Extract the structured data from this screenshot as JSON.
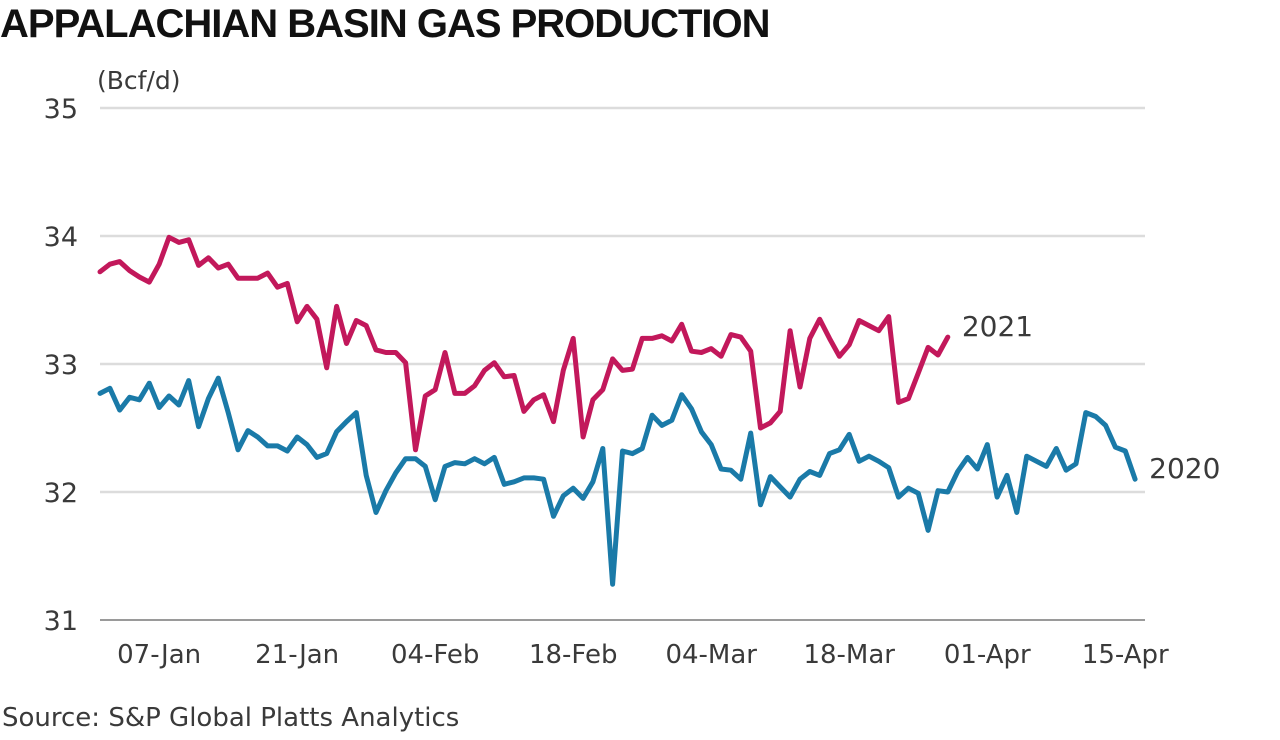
{
  "title": "APPALACHIAN BASIN GAS PRODUCTION",
  "source": "Source: S&P Global Platts Analytics",
  "chart_data": {
    "type": "line",
    "ylabel": "(Bcf/d)",
    "ylim": [
      31,
      35
    ],
    "yticks": [
      "31",
      "32",
      "33",
      "34",
      "35"
    ],
    "grid": true,
    "x_domain": [
      "01-Jan",
      "17-Apr"
    ],
    "xticks": [
      {
        "label": "07-Jan",
        "day": 7
      },
      {
        "label": "21-Jan",
        "day": 21
      },
      {
        "label": "04-Feb",
        "day": 35
      },
      {
        "label": "18-Feb",
        "day": 49
      },
      {
        "label": "04-Mar",
        "day": 63
      },
      {
        "label": "18-Mar",
        "day": 77
      },
      {
        "label": "01-Apr",
        "day": 91
      },
      {
        "label": "15-Apr",
        "day": 105
      }
    ],
    "series": [
      {
        "name": "2021",
        "color": "#c2185b",
        "values": [
          33.72,
          33.78,
          33.8,
          33.73,
          33.68,
          33.64,
          33.78,
          33.99,
          33.95,
          33.97,
          33.77,
          33.83,
          33.75,
          33.78,
          33.67,
          33.67,
          33.67,
          33.71,
          33.6,
          33.63,
          33.33,
          33.45,
          33.35,
          32.97,
          33.45,
          33.16,
          33.34,
          33.3,
          33.11,
          33.09,
          33.09,
          33.01,
          32.33,
          32.75,
          32.8,
          33.09,
          32.77,
          32.77,
          32.83,
          32.95,
          33.01,
          32.9,
          32.91,
          32.63,
          32.72,
          32.76,
          32.55,
          32.95,
          33.2,
          32.43,
          32.72,
          32.8,
          33.04,
          32.95,
          32.96,
          33.2,
          33.2,
          33.22,
          33.18,
          33.31,
          33.1,
          33.09,
          33.12,
          33.06,
          33.23,
          33.21,
          33.1,
          32.5,
          32.54,
          32.63,
          33.26,
          32.82,
          33.2,
          33.35,
          33.2,
          33.06,
          33.15,
          33.34,
          33.3,
          33.26,
          33.37,
          32.7,
          32.73,
          32.93,
          33.13,
          33.07,
          33.21
        ]
      },
      {
        "name": "2020",
        "color": "#1a7aa8",
        "values": [
          32.77,
          32.81,
          32.64,
          32.74,
          32.72,
          32.85,
          32.66,
          32.75,
          32.68,
          32.87,
          32.51,
          32.73,
          32.89,
          32.62,
          32.33,
          32.48,
          32.43,
          32.36,
          32.36,
          32.32,
          32.43,
          32.37,
          32.27,
          32.3,
          32.47,
          32.55,
          32.62,
          32.13,
          31.84,
          32.01,
          32.15,
          32.26,
          32.26,
          32.2,
          31.94,
          32.2,
          32.23,
          32.22,
          32.26,
          32.22,
          32.27,
          32.06,
          32.08,
          32.11,
          32.11,
          32.1,
          31.81,
          31.97,
          32.03,
          31.95,
          32.08,
          32.34,
          31.28,
          32.32,
          32.3,
          32.34,
          32.6,
          32.52,
          32.56,
          32.76,
          32.65,
          32.47,
          32.37,
          32.18,
          32.17,
          32.1,
          32.46,
          31.9,
          32.12,
          32.04,
          31.96,
          32.1,
          32.16,
          32.13,
          32.3,
          32.33,
          32.45,
          32.24,
          32.28,
          32.24,
          32.19,
          31.96,
          32.03,
          31.99,
          31.7,
          32.01,
          32.0,
          32.16,
          32.27,
          32.18,
          32.37,
          31.96,
          32.13,
          31.84,
          32.28,
          32.24,
          32.2,
          32.34,
          32.17,
          32.22,
          32.62,
          32.59,
          32.52,
          32.35,
          32.32,
          32.1
        ]
      }
    ]
  }
}
